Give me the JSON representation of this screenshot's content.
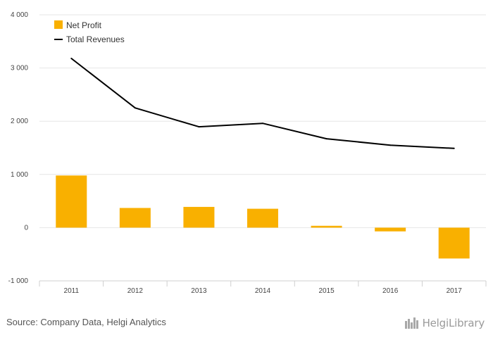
{
  "chart_data": {
    "type": "bar",
    "categories": [
      "2011",
      "2012",
      "2013",
      "2014",
      "2015",
      "2016",
      "2017"
    ],
    "series": [
      {
        "name": "Net Profit",
        "kind": "bar",
        "color": "#f9b000",
        "values": [
          980,
          370,
          390,
          355,
          35,
          -70,
          -580
        ]
      },
      {
        "name": "Total Revenues",
        "kind": "line",
        "color": "#000000",
        "values": [
          3180,
          2250,
          1895,
          1960,
          1670,
          1550,
          1490
        ]
      }
    ],
    "ylim": [
      -1000,
      4000
    ],
    "yticks": [
      -1000,
      0,
      1000,
      2000,
      3000,
      4000
    ],
    "ytick_labels": [
      "-1 000",
      "0",
      "1 000",
      "2 000",
      "3 000",
      "4 000"
    ],
    "grid": true,
    "legend_position": "top-left"
  },
  "source": "Source: Company Data, Helgi Analytics",
  "logo": {
    "text": "HelgiLibrary",
    "icon": "building-icon"
  }
}
